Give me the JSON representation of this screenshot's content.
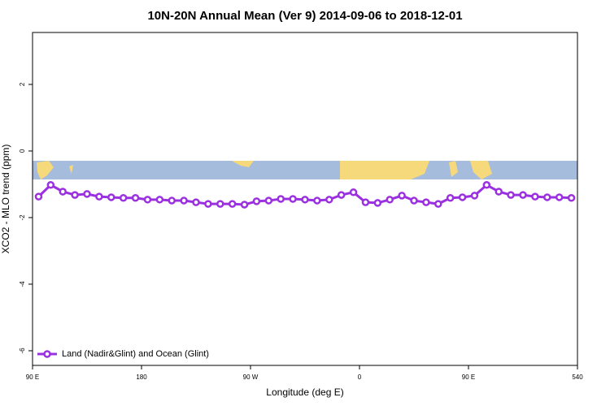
{
  "chart_data": {
    "type": "line",
    "title": "10N-20N Annual Mean (Ver 9)   2014-09-06 to 2018-12-01",
    "x_label": "Longitude (deg E)",
    "y_label": "XCO2 - MLO trend (ppm)",
    "x": [
      95,
      105,
      115,
      125,
      135,
      145,
      155,
      165,
      175,
      185,
      195,
      205,
      215,
      225,
      235,
      245,
      255,
      265,
      275,
      285,
      295,
      305,
      315,
      325,
      335,
      345,
      355,
      365,
      375,
      385,
      395,
      405,
      415,
      425,
      435,
      445,
      455,
      465,
      475,
      485,
      495,
      505,
      515,
      525,
      535
    ],
    "series": [
      {
        "name": "Land (Nadir&Glint) and Ocean (Glint)",
        "color": "#9b30e0",
        "values": [
          -1.37,
          -1.02,
          -1.22,
          -1.32,
          -1.29,
          -1.37,
          -1.39,
          -1.41,
          -1.41,
          -1.46,
          -1.46,
          -1.49,
          -1.49,
          -1.54,
          -1.59,
          -1.59,
          -1.59,
          -1.61,
          -1.51,
          -1.49,
          -1.44,
          -1.44,
          -1.46,
          -1.49,
          -1.46,
          -1.32,
          -1.24,
          -1.54,
          -1.56,
          -1.46,
          -1.34,
          -1.49,
          -1.54,
          -1.59,
          -1.41,
          -1.39,
          -1.34,
          -1.02,
          -1.22,
          -1.32,
          -1.32,
          -1.37,
          -1.39,
          -1.39,
          -1.41
        ]
      }
    ],
    "xlim": [
      90,
      540
    ],
    "xticks": [
      {
        "value": 90,
        "label": "90 E"
      },
      180,
      {
        "value": 270,
        "label": "90 W"
      },
      {
        "value": 360,
        "label": "0"
      },
      {
        "value": 450,
        "label": "90 E"
      },
      540
    ],
    "ylim": [
      -6.44,
      3.56
    ],
    "yticks": [
      -6,
      -4,
      -2,
      0,
      2
    ],
    "legend": "bottom-left"
  }
}
